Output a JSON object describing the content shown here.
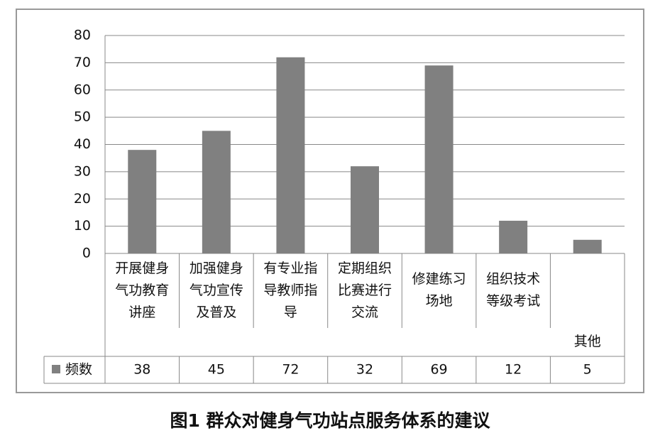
{
  "chart_data": {
    "type": "bar",
    "caption": "图1 群众对健身气功站点服务体系的建议",
    "categories": [
      "开展健身气功教育讲座",
      "加强健身气功宣传及普及",
      "有专业指导教师指导",
      "定期组织比赛进行交流",
      "修建练习场地",
      "组织技术等级考试",
      "其他"
    ],
    "series": [
      {
        "name": "频数",
        "color": "#808080",
        "values": [
          38,
          45,
          72,
          32,
          69,
          12,
          5
        ]
      }
    ],
    "ylim": [
      0,
      80
    ],
    "yticks": [
      0,
      10,
      20,
      30,
      40,
      50,
      60,
      70,
      80
    ],
    "grid": true,
    "legend": "table"
  }
}
